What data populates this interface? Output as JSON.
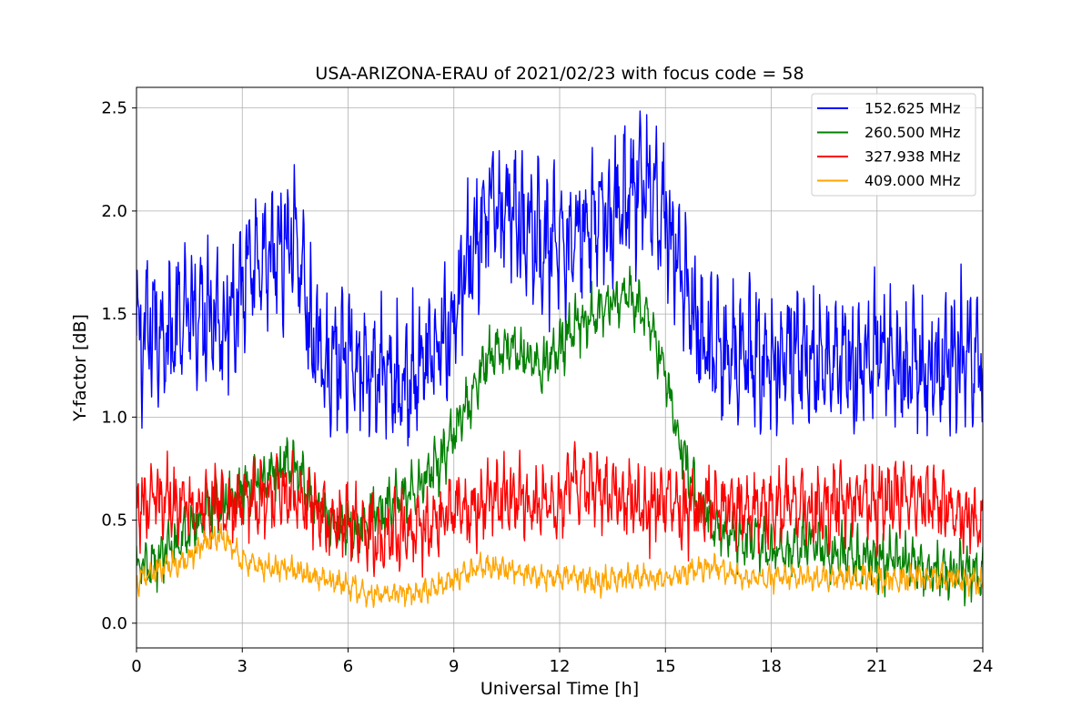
{
  "chart_data": {
    "type": "line",
    "title": "USA-ARIZONA-ERAU of 2021/02/23 with focus code = 58",
    "xlabel": "Universal Time [h]",
    "ylabel": "Y-factor [dB]",
    "xlim": [
      0,
      24
    ],
    "ylim": [
      -0.12,
      2.6
    ],
    "xticks": [
      0,
      3,
      6,
      9,
      12,
      15,
      18,
      21,
      24
    ],
    "yticks": [
      0.0,
      0.5,
      1.0,
      1.5,
      2.0,
      2.5
    ],
    "xtick_labels": [
      "0",
      "3",
      "6",
      "9",
      "12",
      "15",
      "18",
      "21",
      "24"
    ],
    "ytick_labels": [
      "0.0",
      "0.5",
      "1.0",
      "1.5",
      "2.0",
      "2.5"
    ],
    "grid": true,
    "legend_position": "top-right",
    "x": [
      0,
      0.5,
      1,
      1.5,
      2,
      2.5,
      3,
      3.5,
      4,
      4.5,
      5,
      5.5,
      6,
      6.5,
      7,
      7.5,
      8,
      8.5,
      9,
      9.5,
      10,
      10.5,
      11,
      11.5,
      12,
      12.5,
      13,
      13.5,
      14,
      14.5,
      15,
      15.5,
      16,
      16.5,
      17,
      17.5,
      18,
      18.5,
      19,
      19.5,
      20,
      20.5,
      21,
      21.5,
      22,
      22.5,
      23,
      23.5,
      24
    ],
    "series": [
      {
        "name": "152.625 MHz",
        "color": "#0000ff",
        "values": [
          1.35,
          1.45,
          1.4,
          1.5,
          1.55,
          1.45,
          1.65,
          1.7,
          1.8,
          1.9,
          1.35,
          1.25,
          1.3,
          1.25,
          1.2,
          1.15,
          1.2,
          1.3,
          1.5,
          1.8,
          2.0,
          2.05,
          1.95,
          1.85,
          1.8,
          1.85,
          1.95,
          2.0,
          2.1,
          2.15,
          1.95,
          1.7,
          1.4,
          1.3,
          1.3,
          1.25,
          1.25,
          1.3,
          1.3,
          1.25,
          1.3,
          1.25,
          1.3,
          1.2,
          1.25,
          1.2,
          1.3,
          1.3,
          1.25
        ],
        "peak_amplitude": 0.55
      },
      {
        "name": "260.500 MHz",
        "color": "#008000",
        "values": [
          0.25,
          0.3,
          0.35,
          0.45,
          0.55,
          0.6,
          0.65,
          0.7,
          0.75,
          0.8,
          0.6,
          0.5,
          0.45,
          0.5,
          0.55,
          0.6,
          0.65,
          0.75,
          0.9,
          1.1,
          1.3,
          1.35,
          1.3,
          1.25,
          1.35,
          1.45,
          1.5,
          1.55,
          1.6,
          1.5,
          1.2,
          0.8,
          0.55,
          0.45,
          0.4,
          0.4,
          0.35,
          0.35,
          0.4,
          0.35,
          0.35,
          0.3,
          0.3,
          0.3,
          0.3,
          0.25,
          0.25,
          0.25,
          0.25
        ],
        "peak_amplitude": 0.22
      },
      {
        "name": "327.938 MHz",
        "color": "#ff0000",
        "values": [
          0.55,
          0.6,
          0.6,
          0.55,
          0.6,
          0.55,
          0.6,
          0.6,
          0.65,
          0.6,
          0.55,
          0.5,
          0.5,
          0.45,
          0.42,
          0.45,
          0.45,
          0.5,
          0.55,
          0.55,
          0.6,
          0.6,
          0.6,
          0.55,
          0.6,
          0.7,
          0.65,
          0.6,
          0.6,
          0.55,
          0.6,
          0.55,
          0.55,
          0.6,
          0.55,
          0.55,
          0.55,
          0.6,
          0.55,
          0.55,
          0.6,
          0.6,
          0.55,
          0.65,
          0.6,
          0.6,
          0.55,
          0.5,
          0.5
        ],
        "peak_amplitude": 0.3
      },
      {
        "name": "409.000 MHz",
        "color": "#ffa500",
        "values": [
          0.2,
          0.25,
          0.28,
          0.32,
          0.4,
          0.42,
          0.3,
          0.28,
          0.27,
          0.26,
          0.22,
          0.2,
          0.18,
          0.15,
          0.14,
          0.15,
          0.15,
          0.18,
          0.22,
          0.26,
          0.28,
          0.26,
          0.24,
          0.22,
          0.22,
          0.22,
          0.2,
          0.21,
          0.22,
          0.22,
          0.22,
          0.25,
          0.27,
          0.26,
          0.24,
          0.22,
          0.22,
          0.23,
          0.22,
          0.22,
          0.22,
          0.22,
          0.22,
          0.21,
          0.22,
          0.22,
          0.22,
          0.2,
          0.2
        ],
        "peak_amplitude": 0.1
      }
    ]
  }
}
